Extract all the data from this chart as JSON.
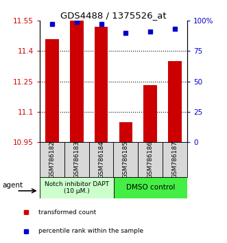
{
  "title": "GDS4488 / 1375526_at",
  "samples": [
    "GSM786182",
    "GSM786183",
    "GSM786184",
    "GSM786185",
    "GSM786186",
    "GSM786187"
  ],
  "red_values": [
    11.46,
    11.55,
    11.52,
    11.05,
    11.23,
    11.35
  ],
  "blue_values": [
    97,
    99,
    97,
    90,
    91,
    93
  ],
  "ymin": 10.95,
  "ymax": 11.55,
  "y2min": 0,
  "y2max": 100,
  "yticks": [
    10.95,
    11.1,
    11.25,
    11.4,
    11.55
  ],
  "ytick_labels": [
    "10.95",
    "11.1",
    "11.25",
    "11.4",
    "11.55"
  ],
  "y2ticks": [
    0,
    25,
    50,
    75,
    100
  ],
  "y2tick_labels": [
    "0",
    "25",
    "50",
    "75",
    "100%"
  ],
  "bar_color": "#cc0000",
  "dot_color": "#0000cc",
  "bg_color": "#ffffff",
  "plot_bg": "#ffffff",
  "group1_label": "Notch inhibitor DAPT\n(10 μM.)",
  "group2_label": "DMSO control",
  "group1_color": "#ccffcc",
  "group2_color": "#44ee44",
  "legend_red": "transformed count",
  "legend_blue": "percentile rank within the sample",
  "agent_label": "agent",
  "ylabel_color": "#cc0000",
  "y2label_color": "#0000cc",
  "bar_width": 0.55,
  "gridline_ticks": [
    11.1,
    11.25,
    11.4
  ]
}
